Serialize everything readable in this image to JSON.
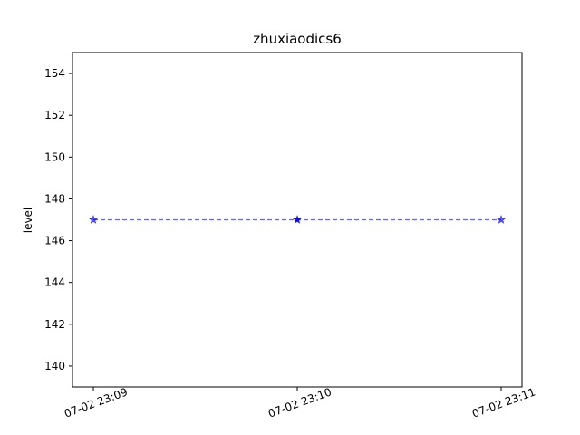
{
  "chart_data": {
    "type": "line",
    "title": "zhuxiaodics6",
    "xlabel": "",
    "ylabel": "level",
    "x": [
      "07-02 23:09",
      "07-02 23:10",
      "07-02 23:11"
    ],
    "series": [
      {
        "values": [
          147,
          147,
          147
        ]
      }
    ],
    "ylim": [
      139,
      155
    ],
    "yticks": [
      140,
      142,
      144,
      146,
      148,
      150,
      152,
      154
    ],
    "xtick_labels": [
      "07-02 23:09",
      "07-02 23:10",
      "07-02 23:11"
    ],
    "line_color": "#0000ff",
    "line_style": "dashed",
    "marker": "star",
    "grid": false,
    "legend": false
  }
}
